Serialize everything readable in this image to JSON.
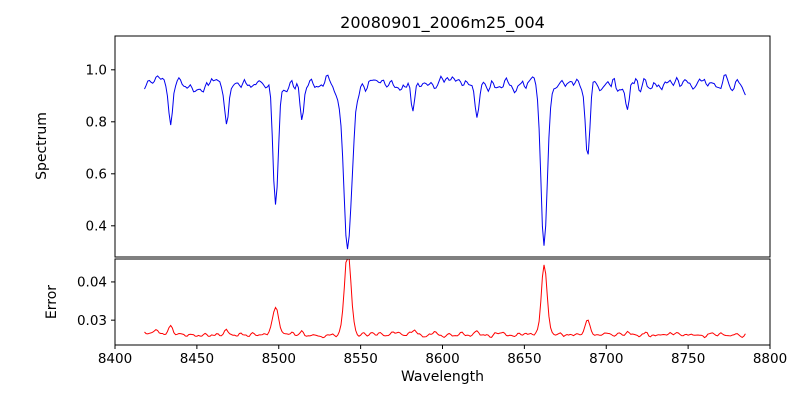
{
  "figure": {
    "background": "#ffffff",
    "frame_color": "#000000"
  },
  "chart_data": {
    "type": "line",
    "title": "20080901_2006m25_004",
    "xlabel": "Wavelength",
    "x_ticks": [
      8400,
      8450,
      8500,
      8550,
      8600,
      8650,
      8700,
      8750,
      8800
    ],
    "x_axis_range": [
      8400,
      8800
    ],
    "x_data_range": [
      8418,
      8785
    ],
    "x_step": 1,
    "seed": 20080901,
    "panels": [
      {
        "name": "spectrum",
        "ylabel": "Spectrum",
        "color": "#0000ee",
        "ylim": [
          0.28,
          1.13
        ],
        "yticks": [
          0.4,
          0.6,
          0.8,
          1.0
        ],
        "ytick_labels": [
          "0.4",
          "0.6",
          "0.8",
          "1.0"
        ],
        "continuum": 0.945,
        "noise_amp": 0.055,
        "absorption_lines": [
          {
            "center": 8434.0,
            "depth": 0.13,
            "sigma": 1.2
          },
          {
            "center": 8468.0,
            "depth": 0.17,
            "sigma": 1.3
          },
          {
            "center": 8498.0,
            "depth": 0.47,
            "sigma": 1.6
          },
          {
            "center": 8514.0,
            "depth": 0.13,
            "sigma": 1.2
          },
          {
            "center": 8542.1,
            "depth": 0.63,
            "sigma": 2.6
          },
          {
            "center": 8582.0,
            "depth": 0.1,
            "sigma": 1.2
          },
          {
            "center": 8621.0,
            "depth": 0.11,
            "sigma": 1.2
          },
          {
            "center": 8662.1,
            "depth": 0.62,
            "sigma": 2.0
          },
          {
            "center": 8688.6,
            "depth": 0.25,
            "sigma": 1.4
          },
          {
            "center": 8713.0,
            "depth": 0.1,
            "sigma": 1.2
          }
        ]
      },
      {
        "name": "error",
        "ylabel": "Error",
        "color": "#ff0000",
        "ylim": [
          0.0235,
          0.046
        ],
        "yticks": [
          0.03,
          0.04
        ],
        "ytick_labels": [
          "0.03",
          "0.04"
        ],
        "baseline": 0.0262,
        "noise_amp": 0.0012,
        "spikes": [
          {
            "center": 8425.0,
            "amp": 0.0012,
            "sigma": 2.0
          },
          {
            "center": 8434.0,
            "amp": 0.002,
            "sigma": 1.3
          },
          {
            "center": 8468.0,
            "amp": 0.0015,
            "sigma": 1.3
          },
          {
            "center": 8498.0,
            "amp": 0.0075,
            "sigma": 1.8
          },
          {
            "center": 8514.0,
            "amp": 0.001,
            "sigma": 1.2
          },
          {
            "center": 8542.1,
            "amp": 0.022,
            "sigma": 2.0
          },
          {
            "center": 8582.0,
            "amp": 0.0008,
            "sigma": 1.2
          },
          {
            "center": 8621.0,
            "amp": 0.0008,
            "sigma": 1.2
          },
          {
            "center": 8662.1,
            "amp": 0.018,
            "sigma": 1.7
          },
          {
            "center": 8688.6,
            "amp": 0.004,
            "sigma": 1.5
          },
          {
            "center": 8713.0,
            "amp": 0.0007,
            "sigma": 1.2
          }
        ]
      }
    ],
    "key_features": [
      {
        "wavelength": 8498,
        "spectrum_min": 0.47,
        "error_peak": 0.034
      },
      {
        "wavelength": 8542,
        "spectrum_min": 0.31,
        "error_peak": 0.046
      },
      {
        "wavelength": 8662,
        "spectrum_min": 0.31,
        "error_peak": 0.044
      },
      {
        "wavelength": 8688,
        "spectrum_min": 0.69,
        "error_peak": 0.03
      }
    ],
    "continuum_level": 0.95,
    "legend": "none",
    "grid": false
  }
}
